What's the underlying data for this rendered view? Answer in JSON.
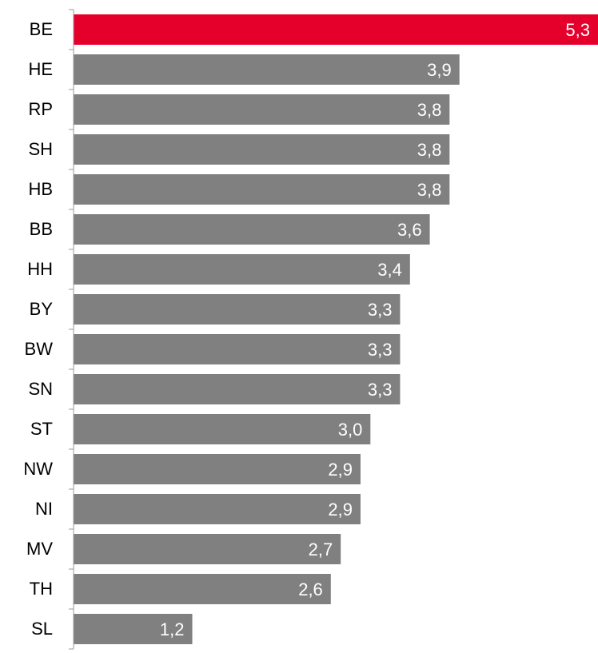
{
  "chart_data": {
    "type": "bar",
    "orientation": "horizontal",
    "categories": [
      "BE",
      "HE",
      "RP",
      "SH",
      "HB",
      "BB",
      "HH",
      "BY",
      "BW",
      "SN",
      "ST",
      "NW",
      "NI",
      "MV",
      "TH",
      "SL"
    ],
    "values": [
      5.3,
      3.9,
      3.8,
      3.8,
      3.8,
      3.6,
      3.4,
      3.3,
      3.3,
      3.3,
      3.0,
      2.9,
      2.9,
      2.7,
      2.6,
      1.2
    ],
    "value_labels": [
      "5,3",
      "3,9",
      "3,8",
      "3,8",
      "3,8",
      "3,6",
      "3,4",
      "3,3",
      "3,3",
      "3,3",
      "3,0",
      "2,9",
      "2,9",
      "2,7",
      "2,6",
      "1,2"
    ],
    "colors": [
      "#e4002b",
      "#808080",
      "#808080",
      "#808080",
      "#808080",
      "#808080",
      "#808080",
      "#808080",
      "#808080",
      "#808080",
      "#808080",
      "#808080",
      "#808080",
      "#808080",
      "#808080",
      "#808080"
    ],
    "xlim": [
      0,
      5.3
    ]
  }
}
